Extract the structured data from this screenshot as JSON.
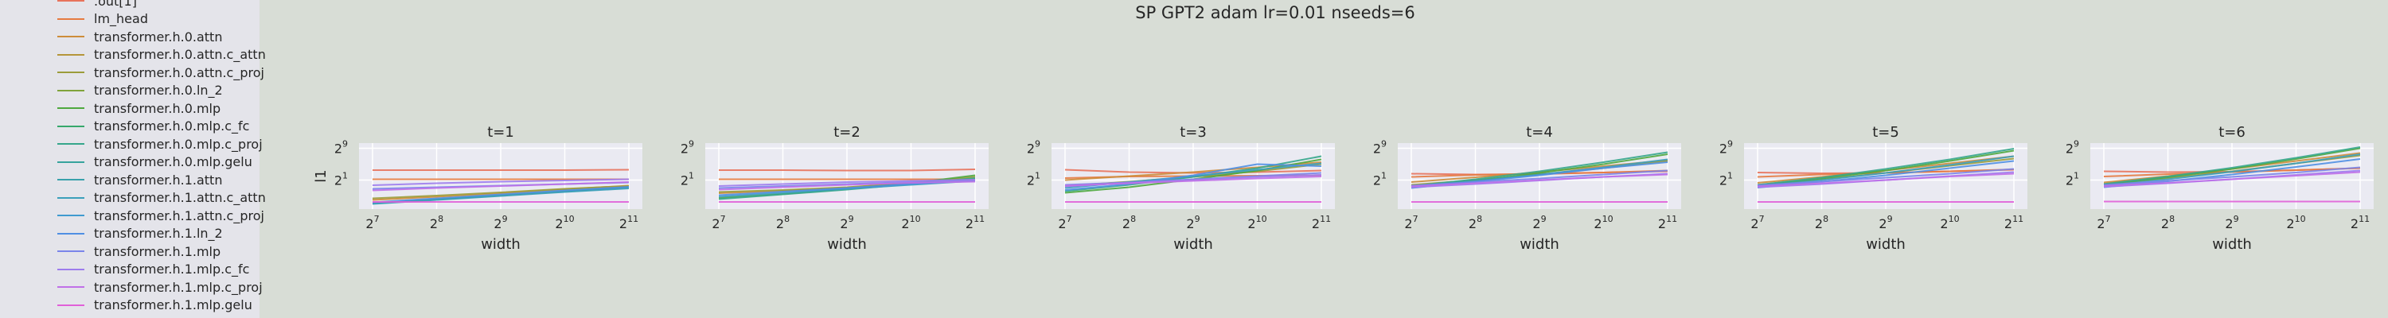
{
  "title": "SP GPT2 adam lr=0.01 nseeds=6",
  "legend": [
    {
      "label": ".out[1]",
      "color": "#e8735c"
    },
    {
      "label": "lm_head",
      "color": "#e67a40"
    },
    {
      "label": "transformer.h.0.attn",
      "color": "#cd8c3a"
    },
    {
      "label": "transformer.h.0.attn.c_attn",
      "color": "#b5953a"
    },
    {
      "label": "transformer.h.0.attn.c_proj",
      "color": "#9b9c3a"
    },
    {
      "label": "transformer.h.0.ln_2",
      "color": "#80a33a"
    },
    {
      "label": "transformer.h.0.mlp",
      "color": "#4ea83e"
    },
    {
      "label": "transformer.h.0.mlp.c_fc",
      "color": "#36a86b"
    },
    {
      "label": "transformer.h.0.mlp.c_proj",
      "color": "#35a68b"
    },
    {
      "label": "transformer.h.0.mlp.gelu",
      "color": "#37a39c"
    },
    {
      "label": "transformer.h.1.attn",
      "color": "#39a1ab"
    },
    {
      "label": "transformer.h.1.attn.c_attn",
      "color": "#3b9fbb"
    },
    {
      "label": "transformer.h.1.attn.c_proj",
      "color": "#3f9ad0"
    },
    {
      "label": "transformer.h.1.ln_2",
      "color": "#4f8fe3"
    },
    {
      "label": "transformer.h.1.mlp",
      "color": "#7a85ea"
    },
    {
      "label": "transformer.h.1.mlp.c_fc",
      "color": "#9d7ced"
    },
    {
      "label": "transformer.h.1.mlp.c_proj",
      "color": "#c070e8"
    },
    {
      "label": "transformer.h.1.mlp.gelu",
      "color": "#e060d8"
    }
  ],
  "chart_data": {
    "type": "line",
    "xlabel": "width",
    "ylabel": "l1",
    "x_ticks": [
      {
        "base": "2",
        "exp": "7"
      },
      {
        "base": "2",
        "exp": "8"
      },
      {
        "base": "2",
        "exp": "9"
      },
      {
        "base": "2",
        "exp": "10"
      },
      {
        "base": "2",
        "exp": "11"
      }
    ],
    "y_ticks": [
      {
        "base": "2",
        "exp": "9"
      },
      {
        "base": "2",
        "exp": "1"
      }
    ],
    "x": [
      128,
      256,
      512,
      1024,
      2048
    ],
    "xlim": [
      128,
      2048
    ],
    "x_scale": "log2",
    "y_scale": "log2",
    "ylim_exp": [
      -5.5,
      9.5
    ],
    "panels": [
      {
        "title": "t=1",
        "series": [
          {
            "color": "#e8735c",
            "values_exp": [
              3.5,
              3.5,
              3.5,
              3.5,
              3.6
            ]
          },
          {
            "color": "#e67a40",
            "values_exp": [
              1.2,
              1.2,
              1.2,
              1.2,
              1.2
            ]
          },
          {
            "color": "#cd8c3a",
            "values_exp": [
              -4.0,
              -3.2,
              -2.3,
              -1.3,
              -0.4
            ]
          },
          {
            "color": "#9b9c3a",
            "values_exp": [
              -3.6,
              -2.9,
              -2.1,
              -1.2,
              -0.5
            ]
          },
          {
            "color": "#4ea83e",
            "values_exp": [
              -4.8,
              -3.8,
              -2.8,
              -1.8,
              -0.8
            ]
          },
          {
            "color": "#35a68b",
            "values_exp": [
              -4.9,
              -3.9,
              -2.9,
              -1.9,
              -0.9
            ]
          },
          {
            "color": "#3b9fbb",
            "values_exp": [
              -5.0,
              -4.0,
              -3.0,
              -2.0,
              -1.1
            ]
          },
          {
            "color": "#4f8fe3",
            "values_exp": [
              -4.6,
              -3.6,
              -2.6,
              -1.6,
              -0.7
            ]
          },
          {
            "color": "#7a85ea",
            "values_exp": [
              -1.2,
              -0.8,
              -0.4,
              0.0,
              0.4
            ]
          },
          {
            "color": "#9d7ced",
            "values_exp": [
              -0.3,
              0.2,
              0.6,
              0.9,
              1.2
            ]
          },
          {
            "color": "#c070e8",
            "values_exp": [
              -1.6,
              -1.0,
              -0.5,
              0.0,
              0.5
            ]
          },
          {
            "color": "#e060d8",
            "values_exp": [
              -4.5,
              -4.5,
              -4.5,
              -4.5,
              -4.5
            ]
          }
        ]
      },
      {
        "title": "t=2",
        "series": [
          {
            "color": "#e8735c",
            "values_exp": [
              3.5,
              3.5,
              3.4,
              3.4,
              3.7
            ]
          },
          {
            "color": "#e67a40",
            "values_exp": [
              1.2,
              1.2,
              1.2,
              1.2,
              1.2
            ]
          },
          {
            "color": "#cd8c3a",
            "values_exp": [
              -2.3,
              -1.7,
              -0.9,
              0.2,
              1.3
            ]
          },
          {
            "color": "#9b9c3a",
            "values_exp": [
              -2.0,
              -1.5,
              -0.8,
              0.3,
              1.8
            ]
          },
          {
            "color": "#4ea83e",
            "values_exp": [
              -3.5,
              -2.5,
              -1.2,
              0.2,
              2.2
            ]
          },
          {
            "color": "#35a68b",
            "values_exp": [
              -3.8,
              -2.6,
              -1.4,
              0.0,
              1.5
            ]
          },
          {
            "color": "#3b9fbb",
            "values_exp": [
              -3.2,
              -2.2,
              -1.2,
              -0.2,
              0.8
            ]
          },
          {
            "color": "#4f8fe3",
            "values_exp": [
              -2.8,
              -1.9,
              -1.0,
              0.0,
              0.9
            ]
          },
          {
            "color": "#7a85ea",
            "values_exp": [
              -1.0,
              -0.5,
              0.0,
              0.5,
              0.9
            ]
          },
          {
            "color": "#9d7ced",
            "values_exp": [
              -0.5,
              0.0,
              0.5,
              0.8,
              1.1
            ]
          },
          {
            "color": "#c070e8",
            "values_exp": [
              -1.4,
              -0.8,
              -0.2,
              0.3,
              0.6
            ]
          },
          {
            "color": "#e060d8",
            "values_exp": [
              -4.5,
              -4.5,
              -4.5,
              -4.5,
              -4.5
            ]
          }
        ]
      },
      {
        "title": "t=3",
        "series": [
          {
            "color": "#e8735c",
            "values_exp": [
              3.6,
              3.0,
              2.8,
              3.0,
              3.4
            ]
          },
          {
            "color": "#e67a40",
            "values_exp": [
              1.5,
              1.9,
              2.0,
              2.1,
              2.2
            ]
          },
          {
            "color": "#cd8c3a",
            "values_exp": [
              1.0,
              2.0,
              3.0,
              4.2,
              5.5
            ]
          },
          {
            "color": "#9b9c3a",
            "values_exp": [
              -0.5,
              0.6,
              1.8,
              3.2,
              5.0
            ]
          },
          {
            "color": "#4ea83e",
            "values_exp": [
              -2.2,
              -0.8,
              1.2,
              3.4,
              6.2
            ]
          },
          {
            "color": "#35a68b",
            "values_exp": [
              -1.8,
              -0.2,
              1.8,
              4.0,
              7.0
            ]
          },
          {
            "color": "#3b9fbb",
            "values_exp": [
              -1.0,
              0.5,
              2.0,
              3.6,
              5.2
            ]
          },
          {
            "color": "#4f8fe3",
            "values_exp": [
              -1.5,
              0.0,
              2.2,
              5.0,
              4.5
            ]
          },
          {
            "color": "#7a85ea",
            "values_exp": [
              -0.2,
              0.4,
              1.2,
              2.0,
              2.8
            ]
          },
          {
            "color": "#9d7ced",
            "values_exp": [
              -0.6,
              0.3,
              1.0,
              1.8,
              2.3
            ]
          },
          {
            "color": "#c070e8",
            "values_exp": [
              -0.4,
              0.2,
              0.8,
              1.4,
              1.9
            ]
          },
          {
            "color": "#e060d8",
            "values_exp": [
              -4.5,
              -4.5,
              -4.5,
              -4.5,
              -4.5
            ]
          }
        ]
      },
      {
        "title": "t=4",
        "series": [
          {
            "color": "#e8735c",
            "values_exp": [
              2.6,
              2.4,
              2.5,
              2.9,
              3.2
            ]
          },
          {
            "color": "#e67a40",
            "values_exp": [
              1.8,
              2.3,
              2.6,
              2.9,
              3.4
            ]
          },
          {
            "color": "#cd8c3a",
            "values_exp": [
              0.5,
              1.7,
              3.0,
              4.5,
              6.0
            ]
          },
          {
            "color": "#9b9c3a",
            "values_exp": [
              -0.2,
              1.0,
              2.4,
              4.0,
              5.8
            ]
          },
          {
            "color": "#4ea83e",
            "values_exp": [
              -0.8,
              0.8,
              2.8,
              5.0,
              7.5
            ]
          },
          {
            "color": "#35a68b",
            "values_exp": [
              -0.5,
              1.2,
              3.2,
              5.5,
              8.0
            ]
          },
          {
            "color": "#3b9fbb",
            "values_exp": [
              -0.6,
              0.8,
              2.4,
              4.2,
              6.2
            ]
          },
          {
            "color": "#4f8fe3",
            "values_exp": [
              -1.0,
              0.6,
              2.2,
              4.0,
              5.5
            ]
          },
          {
            "color": "#7a85ea",
            "values_exp": [
              -0.4,
              0.5,
              1.4,
              2.4,
              3.4
            ]
          },
          {
            "color": "#9d7ced",
            "values_exp": [
              -0.8,
              0.0,
              0.9,
              1.8,
              2.6
            ]
          },
          {
            "color": "#c070e8",
            "values_exp": [
              -0.6,
              0.2,
              1.0,
              1.8,
              2.4
            ]
          },
          {
            "color": "#e060d8",
            "values_exp": [
              -4.5,
              -4.5,
              -4.5,
              -4.5,
              -4.5
            ]
          }
        ]
      },
      {
        "title": "t=5",
        "series": [
          {
            "color": "#e8735c",
            "values_exp": [
              2.9,
              2.7,
              2.8,
              3.2,
              3.6
            ]
          },
          {
            "color": "#e67a40",
            "values_exp": [
              1.8,
              2.4,
              2.8,
              3.2,
              3.7
            ]
          },
          {
            "color": "#cd8c3a",
            "values_exp": [
              0.3,
              1.8,
              3.4,
              5.2,
              7.0
            ]
          },
          {
            "color": "#9b9c3a",
            "values_exp": [
              -0.2,
              1.2,
              2.8,
              4.6,
              6.4
            ]
          },
          {
            "color": "#4ea83e",
            "values_exp": [
              -0.4,
              1.4,
              3.4,
              5.8,
              8.4
            ]
          },
          {
            "color": "#35a68b",
            "values_exp": [
              -0.2,
              1.6,
              3.8,
              6.2,
              8.9
            ]
          },
          {
            "color": "#3b9fbb",
            "values_exp": [
              -0.5,
              1.0,
              2.8,
              4.8,
              7.0
            ]
          },
          {
            "color": "#4f8fe3",
            "values_exp": [
              -0.9,
              0.6,
              2.2,
              4.0,
              5.8
            ]
          },
          {
            "color": "#7a85ea",
            "values_exp": [
              -0.3,
              0.6,
              1.6,
              2.6,
              3.8
            ]
          },
          {
            "color": "#9d7ced",
            "values_exp": [
              -0.8,
              0.0,
              1.0,
              2.0,
              3.0
            ]
          },
          {
            "color": "#c070e8",
            "values_exp": [
              -0.6,
              0.2,
              1.0,
              1.9,
              2.6
            ]
          },
          {
            "color": "#e060d8",
            "values_exp": [
              -4.5,
              -4.5,
              -4.5,
              -4.5,
              -4.5
            ]
          }
        ]
      },
      {
        "title": "t=6",
        "series": [
          {
            "color": "#e8735c",
            "values_exp": [
              3.2,
              3.0,
              3.1,
              3.5,
              4.0
            ]
          },
          {
            "color": "#e67a40",
            "values_exp": [
              1.9,
              2.5,
              3.0,
              3.5,
              4.0
            ]
          },
          {
            "color": "#cd8c3a",
            "values_exp": [
              0.4,
              2.0,
              3.8,
              5.8,
              7.8
            ]
          },
          {
            "color": "#9b9c3a",
            "values_exp": [
              0.0,
              1.5,
              3.2,
              5.2,
              7.2
            ]
          },
          {
            "color": "#4ea83e",
            "values_exp": [
              -0.2,
              1.7,
              3.8,
              6.3,
              9.0
            ]
          },
          {
            "color": "#35a68b",
            "values_exp": [
              0.0,
              1.9,
              4.1,
              6.6,
              9.3
            ]
          },
          {
            "color": "#3b9fbb",
            "values_exp": [
              -0.4,
              1.2,
              3.1,
              5.2,
              7.5
            ]
          },
          {
            "color": "#4f8fe3",
            "values_exp": [
              -0.8,
              0.7,
              2.4,
              4.3,
              6.3
            ]
          },
          {
            "color": "#7a85ea",
            "values_exp": [
              -0.2,
              0.8,
              1.8,
              2.9,
              4.2
            ]
          },
          {
            "color": "#9d7ced",
            "values_exp": [
              -0.7,
              0.2,
              1.2,
              2.3,
              3.4
            ]
          },
          {
            "color": "#c070e8",
            "values_exp": [
              -0.5,
              0.3,
              1.2,
              2.1,
              3.0
            ]
          },
          {
            "color": "#e060d8",
            "values_exp": [
              -4.4,
              -4.4,
              -4.4,
              -4.4,
              -4.4
            ]
          }
        ]
      }
    ]
  }
}
